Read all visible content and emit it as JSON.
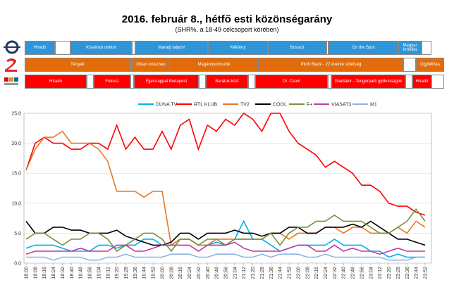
{
  "chart_data": {
    "type": "line",
    "title": "2016. február 8., hétfő esti közönségarány",
    "subtitle": "(SHR%, a 18-49 célcsoport körében)",
    "schedule": [
      {
        "color": "#2e95d8",
        "programs": [
          "Híradó",
          "Kisvárosi doktor",
          "Maradj talpon!",
          "Kékfény",
          "Bosszú",
          "On the Spot",
          "Magyar krónika"
        ]
      },
      {
        "color": "#e36c0a",
        "programs": [
          "Tények",
          "Jóban rosszban",
          "Magánnyomozók",
          "Pitch Black - 22 évente sötétség",
          "Ügyféllista"
        ]
      },
      {
        "color": "#ff0000",
        "programs": [
          "Híradó",
          "Fókusz",
          "Éjjel-nappal Budapest",
          "Barátok közt",
          "Dr. Csont",
          "Gladiátor - Tengerparti gyilkosságok",
          "Híradó"
        ]
      }
    ],
    "categories": [
      "18:00",
      "18:08",
      "18:16",
      "18:24",
      "18:32",
      "18:40",
      "18:48",
      "18:56",
      "19:04",
      "19:12",
      "19:20",
      "19:28",
      "19:36",
      "19:44",
      "19:52",
      "20:00",
      "20:08",
      "20:16",
      "20:24",
      "20:32",
      "20:40",
      "20:48",
      "20:56",
      "21:04",
      "21:12",
      "21:20",
      "21:28",
      "21:36",
      "21:44",
      "21:52",
      "22:00",
      "22:08",
      "22:16",
      "22:24",
      "22:32",
      "22:40",
      "22:48",
      "22:56",
      "23:04",
      "23:12",
      "23:20",
      "23:28",
      "23:36",
      "23:44",
      "23:52"
    ],
    "series": [
      {
        "name": "DUNA TV",
        "color": "#00b0f0",
        "values": [
          2.5,
          3,
          3,
          3,
          2.5,
          2,
          2,
          2,
          3,
          3,
          2.5,
          3,
          3,
          4,
          4,
          3,
          3,
          4,
          4,
          3,
          3,
          3.5,
          3,
          4,
          7,
          4,
          4,
          3,
          2,
          2.5,
          3,
          3,
          3,
          3,
          4,
          3,
          3,
          3,
          2,
          2,
          1,
          1.5,
          1,
          1,
          1
        ]
      },
      {
        "name": "RTL KLUB",
        "color": "#ff0000",
        "values": [
          15.5,
          20,
          21,
          20,
          20,
          19,
          19,
          20,
          20,
          19,
          23,
          19,
          21,
          19,
          19,
          22,
          19,
          23,
          24,
          19,
          23,
          22,
          24,
          23,
          25,
          24,
          22,
          25,
          25,
          22,
          20,
          19,
          18,
          16,
          17,
          16,
          15,
          13,
          13,
          12,
          10,
          9.5,
          9.5,
          8.5,
          8
        ]
      },
      {
        "name": "TV2",
        "color": "#e87722",
        "values": [
          15.5,
          19,
          21,
          21,
          22,
          20,
          20,
          20,
          19,
          17,
          12,
          12,
          12,
          11,
          12,
          12,
          3,
          4,
          4,
          3,
          3,
          4,
          4,
          4,
          4,
          4,
          4,
          5,
          5,
          4,
          5,
          5,
          5,
          6,
          6,
          5,
          6,
          6,
          5,
          5,
          5,
          6,
          5,
          7,
          6
        ]
      },
      {
        "name": "COOL",
        "color": "#000000",
        "values": [
          7,
          5,
          5,
          6,
          6,
          5.5,
          5.5,
          5,
          5,
          5,
          5.5,
          4.5,
          4,
          3.5,
          3,
          3,
          3.5,
          5,
          5,
          4,
          5,
          5,
          5,
          5.5,
          5,
          5,
          4.5,
          5,
          5,
          6,
          6,
          5,
          5,
          6,
          6,
          6,
          6.5,
          6,
          7,
          6,
          5,
          4,
          4,
          3.5,
          3
        ]
      },
      {
        "name": "F+",
        "color": "#77933c",
        "values": [
          4,
          5,
          5,
          4,
          3,
          4,
          4,
          5,
          5,
          4,
          2,
          3,
          4,
          5,
          5,
          4,
          2,
          4,
          4,
          3,
          4,
          4,
          3,
          4,
          4,
          4,
          4,
          5,
          3,
          5,
          6,
          6,
          7,
          7,
          8,
          7,
          7,
          7,
          6,
          5,
          5,
          6,
          7,
          9,
          7
        ]
      },
      {
        "name": "VIASAT3",
        "color": "#c0399f",
        "values": [
          1.5,
          2,
          2,
          2,
          2,
          2,
          2.5,
          2,
          2,
          2,
          3,
          3,
          2,
          2,
          2.5,
          3,
          3,
          3,
          3,
          2,
          3,
          3,
          3,
          3.5,
          2.5,
          2,
          2,
          2,
          2,
          2.5,
          3,
          3,
          2,
          2,
          3,
          2,
          2.5,
          2,
          2,
          1.5,
          2,
          2.5,
          2,
          2,
          2
        ]
      },
      {
        "name": "M1",
        "color": "#8db4e2",
        "values": [
          1,
          1,
          1,
          0.5,
          1,
          1,
          1,
          0.5,
          0.5,
          1,
          1,
          1.5,
          1,
          1,
          1,
          1,
          1.5,
          1.5,
          1.5,
          1,
          1,
          1.5,
          1.5,
          1.5,
          1,
          1,
          1.5,
          1,
          1.5,
          1.5,
          1.5,
          1,
          1,
          1.5,
          1,
          1,
          1,
          1,
          1,
          1,
          0.5,
          0.5,
          0.5,
          1,
          1
        ]
      }
    ],
    "ylim": [
      0,
      25
    ],
    "yticks": [
      {
        "value": 0,
        "label": "0,0"
      },
      {
        "value": 5,
        "label": "5,0"
      },
      {
        "value": 10,
        "label": "10,0"
      },
      {
        "value": 15,
        "label": "15,0"
      },
      {
        "value": 20,
        "label": "20,0"
      },
      {
        "value": 25,
        "label": "25,0"
      }
    ],
    "grid": true
  }
}
